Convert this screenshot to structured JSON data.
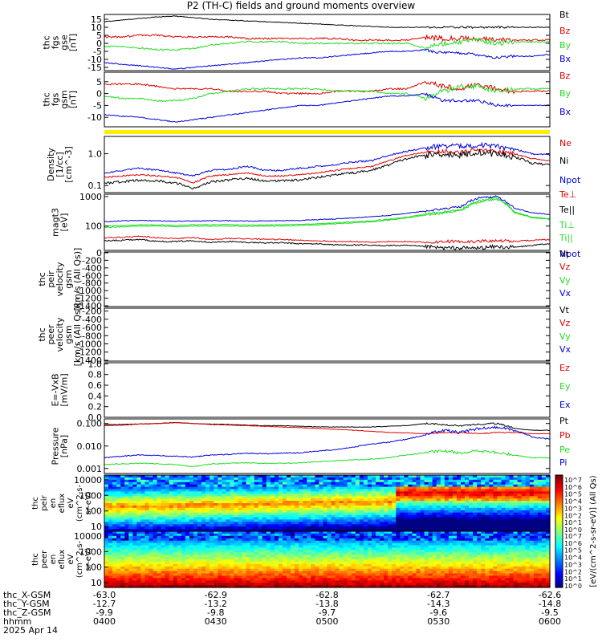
{
  "title": "P2 (TH-C) fields and ground moments overview",
  "colors": {
    "black": "#000000",
    "red": "#e00000",
    "green": "#22dd22",
    "blue": "#0000dd",
    "yellow": "#ffee00"
  },
  "chart_data": {
    "type": "line",
    "title": "P2 (TH-C) fields and ground moments overview",
    "panels": [
      {
        "id": "fgs_gse",
        "ylabel_lines": [
          "thc",
          "fgs",
          "gse",
          "[nT]"
        ],
        "scale": "linear",
        "ylim": [
          -17,
          18
        ],
        "yticks": [
          "15",
          "10",
          "5",
          "0",
          "-5",
          "-10",
          "-15"
        ],
        "ytick_values": [
          15,
          10,
          5,
          0,
          -5,
          -10,
          -15
        ],
        "series": [
          {
            "name": "Bt",
            "color": "#000000",
            "values": [
              13.5,
              14.5,
              15.5,
              16.5,
              17,
              16,
              15,
              14.5,
              14,
              13.5,
              13,
              12.5,
              12,
              11.5,
              11,
              10.5,
              10,
              10,
              10,
              10,
              10,
              10,
              10,
              10,
              10,
              10
            ],
            "noise": 0.2
          },
          {
            "name": "Bz",
            "color": "#e00000",
            "values": [
              4,
              4,
              5,
              5,
              4,
              4,
              4,
              4,
              3,
              3,
              3,
              3,
              3,
              3,
              2,
              2,
              2,
              2,
              4,
              3,
              3,
              3,
              2,
              2,
              2,
              2
            ],
            "noise": 0.5
          },
          {
            "name": "By",
            "color": "#22dd22",
            "values": [
              -2,
              -2,
              -3,
              -4,
              -4,
              -3,
              -1,
              0,
              1,
              1,
              1,
              0,
              0,
              0,
              0,
              0,
              0,
              0,
              -3,
              0,
              1,
              2,
              0,
              1,
              1,
              1
            ],
            "noise": 0.5
          },
          {
            "name": "Bx",
            "color": "#0000dd",
            "values": [
              -12,
              -13,
              -14,
              -15,
              -16,
              -15,
              -14,
              -13,
              -12,
              -11,
              -10,
              -9,
              -9,
              -8,
              -7,
              -6,
              -5,
              -5,
              -4,
              -6,
              -6,
              -7,
              -9,
              -8,
              -8,
              -7
            ],
            "noise": 0.3
          }
        ]
      },
      {
        "id": "fgs_gsm",
        "ylabel_lines": [
          "thc",
          "fgs",
          "gsm",
          "[nT]"
        ],
        "scale": "linear",
        "ylim": [
          -14,
          9
        ],
        "yticks": [
          "5",
          "0",
          "-5",
          "-10"
        ],
        "ytick_values": [
          5,
          0,
          -5,
          -10
        ],
        "series": [
          {
            "name": "Bz",
            "color": "#e00000",
            "values": [
              4,
              4,
              4,
              3,
              2,
              2,
              2,
              1,
              1,
              1,
              0,
              0,
              0,
              1,
              1,
              1,
              2,
              2,
              5,
              3,
              2,
              4,
              2,
              1,
              1,
              1
            ],
            "noise": 0.5
          },
          {
            "name": "By",
            "color": "#22dd22",
            "values": [
              -1,
              -2,
              -2,
              -3,
              -3,
              -2,
              0,
              1,
              2,
              2,
              2,
              2,
              2,
              1,
              1,
              1,
              0,
              0,
              -2,
              1,
              3,
              3,
              1,
              2,
              2,
              2
            ],
            "noise": 0.5
          },
          {
            "name": "Bx",
            "color": "#0000dd",
            "values": [
              -9,
              -9.5,
              -10,
              -11,
              -12,
              -11,
              -10,
              -9,
              -8,
              -7,
              -6,
              -5,
              -5,
              -4,
              -3,
              -2,
              -1,
              -1,
              0,
              -3,
              -3,
              -3,
              -5,
              -5,
              -5,
              -5
            ],
            "noise": 0.3
          }
        ]
      },
      {
        "id": "density",
        "ylabel_lines": [
          "Density",
          "[1/cc]",
          "[cm^-3]"
        ],
        "scale": "log",
        "ylim": [
          0.06,
          3.5
        ],
        "yticks": [
          "1.0",
          "0.1"
        ],
        "ytick_values": [
          1.0,
          0.1
        ],
        "series": [
          {
            "name": "Ne",
            "color": "#e00000",
            "values": [
              0.18,
              0.2,
              0.22,
              0.2,
              0.18,
              0.12,
              0.2,
              0.22,
              0.25,
              0.2,
              0.2,
              0.22,
              0.25,
              0.3,
              0.35,
              0.4,
              0.6,
              0.9,
              1.1,
              1.2,
              1.1,
              1.3,
              1.2,
              1.0,
              0.7,
              0.6
            ],
            "noise": 0.05
          },
          {
            "name": "Ni",
            "color": "#000000",
            "values": [
              0.12,
              0.13,
              0.15,
              0.14,
              0.12,
              0.08,
              0.13,
              0.15,
              0.17,
              0.14,
              0.14,
              0.15,
              0.18,
              0.22,
              0.25,
              0.3,
              0.45,
              0.7,
              0.9,
              1.0,
              0.9,
              1.1,
              1.0,
              0.8,
              0.5,
              0.45
            ],
            "noise": 0.08
          },
          {
            "name": "Npot",
            "color": "#0000dd",
            "values": [
              0.25,
              0.3,
              0.35,
              0.3,
              0.25,
              0.2,
              0.3,
              0.32,
              0.4,
              0.3,
              0.3,
              0.35,
              0.4,
              0.45,
              0.55,
              0.6,
              0.9,
              1.2,
              1.5,
              1.8,
              1.7,
              1.9,
              1.7,
              1.4,
              1.0,
              0.9
            ],
            "noise": 0.06
          }
        ]
      },
      {
        "id": "moms_temp",
        "ylabel_lines": [
          "magt3",
          "[eV]"
        ],
        "scale": "log",
        "ylim": [
          15,
          1200
        ],
        "yticks": [
          "1000",
          "100"
        ],
        "ytick_values": [
          1000,
          100
        ],
        "series": [
          {
            "name": "Te⊥",
            "color": "#e00000",
            "values": [
              40,
              42,
              45,
              40,
              38,
              40,
              35,
              38,
              37,
              36,
              35,
              33,
              32,
              30,
              30,
              28,
              30,
              30,
              28,
              30,
              30,
              30,
              32,
              30,
              33,
              35
            ],
            "noise": 0.04
          },
          {
            "name": "Te||",
            "color": "#000000",
            "values": [
              32,
              33,
              35,
              30,
              30,
              32,
              28,
              30,
              28,
              27,
              27,
              25,
              25,
              23,
              23,
              22,
              22,
              22,
              20,
              18,
              18,
              18,
              20,
              19,
              22,
              25
            ],
            "noise": 0.05
          },
          {
            "name": "Ti⊥",
            "color": "#22dd22",
            "values": [
              100,
              105,
              110,
              110,
              105,
              110,
              110,
              112,
              108,
              110,
              112,
              115,
              120,
              130,
              140,
              150,
              170,
              200,
              250,
              300,
              350,
              700,
              900,
              300,
              200,
              180
            ],
            "noise": 0.03
          },
          {
            "name": "Ti||",
            "color": "#22dd22",
            "values": [
              90,
              95,
              100,
              100,
              95,
              100,
              100,
              100,
              98,
              100,
              100,
              105,
              110,
              120,
              130,
              140,
              160,
              190,
              230,
              280,
              330,
              650,
              850,
              280,
              190,
              170
            ],
            "noise": 0.03
          },
          {
            "name": "Npot",
            "color": "#0000dd",
            "values": [
              140,
              150,
              155,
              150,
              145,
              150,
              150,
              152,
              148,
              150,
              152,
              155,
              165,
              175,
              190,
              210,
              230,
              270,
              320,
              380,
              450,
              900,
              1000,
              400,
              280,
              250
            ],
            "noise": 0.03
          }
        ]
      },
      {
        "id": "peir_velocity",
        "ylabel_lines": [
          "thc",
          "peir",
          "velocity",
          "gsm",
          "[km/s (All Qs)]"
        ],
        "scale": "linear",
        "ylim": [
          -1420,
          20
        ],
        "yticks": [
          "0",
          "-200",
          "-400",
          "-600",
          "-800",
          "-1000",
          "-1200",
          "-1400"
        ],
        "ytick_values": [
          0,
          -200,
          -400,
          -600,
          -800,
          -1000,
          -1200,
          -1400
        ],
        "series": []
      },
      {
        "id": "peer_velocity",
        "ylabel_lines": [
          "thc",
          "peer",
          "velocity",
          "gsm",
          "[km/s (All Qs)]"
        ],
        "scale": "linear",
        "ylim": [
          -1420,
          -130
        ],
        "yticks": [
          "-200",
          "-400",
          "-600",
          "-800",
          "-1000",
          "-1200",
          "-1400"
        ],
        "ytick_values": [
          -200,
          -400,
          -600,
          -800,
          -1000,
          -1200,
          -1400
        ],
        "series": []
      },
      {
        "id": "efield",
        "ylabel_lines": [
          "E=-VxB",
          "[mV/m]"
        ],
        "scale": "linear",
        "ylim": [
          0,
          1.02
        ],
        "yticks": [
          "1.0",
          "0.8",
          "0.6",
          "0.4",
          "0.2",
          "0.0"
        ],
        "ytick_values": [
          1.0,
          0.8,
          0.6,
          0.4,
          0.2,
          0.0
        ],
        "series": []
      },
      {
        "id": "pressure",
        "ylabel_lines": [
          "Pressure",
          "[nPa]"
        ],
        "scale": "log",
        "ylim": [
          0.0006,
          0.16
        ],
        "yticks": [
          "0.100",
          "0.010",
          "0.001"
        ],
        "ytick_values": [
          0.1,
          0.01,
          0.001
        ],
        "series": [
          {
            "name": "Pt",
            "color": "#000000",
            "values": [
              0.09,
              0.09,
              0.095,
              0.1,
              0.11,
              0.1,
              0.095,
              0.09,
              0.085,
              0.08,
              0.08,
              0.075,
              0.07,
              0.07,
              0.07,
              0.07,
              0.075,
              0.08,
              0.1,
              0.09,
              0.08,
              0.09,
              0.1,
              0.06,
              0.05,
              0.05
            ],
            "noise": 0.03
          },
          {
            "name": "Pb",
            "color": "#e00000",
            "values": [
              0.08,
              0.085,
              0.095,
              0.1,
              0.11,
              0.1,
              0.09,
              0.085,
              0.08,
              0.075,
              0.07,
              0.065,
              0.06,
              0.055,
              0.05,
              0.045,
              0.04,
              0.038,
              0.035,
              0.04,
              0.04,
              0.035,
              0.04,
              0.04,
              0.035,
              0.035
            ],
            "noise": 0.02
          },
          {
            "name": "Pe",
            "color": "#22dd22",
            "values": [
              0.0015,
              0.0016,
              0.0017,
              0.0016,
              0.0015,
              0.0012,
              0.0016,
              0.0017,
              0.0018,
              0.0017,
              0.0017,
              0.0018,
              0.002,
              0.0022,
              0.0024,
              0.0026,
              0.003,
              0.004,
              0.005,
              0.006,
              0.005,
              0.006,
              0.005,
              0.004,
              0.003,
              0.003
            ],
            "noise": 0.05
          },
          {
            "name": "Pi",
            "color": "#0000dd",
            "values": [
              0.003,
              0.0035,
              0.004,
              0.0038,
              0.0035,
              0.0032,
              0.004,
              0.0042,
              0.0048,
              0.0045,
              0.0048,
              0.005,
              0.006,
              0.007,
              0.009,
              0.012,
              0.015,
              0.02,
              0.03,
              0.05,
              0.04,
              0.06,
              0.07,
              0.05,
              0.025,
              0.02
            ],
            "noise": 0.05
          }
        ]
      }
    ],
    "spectrograms": [
      {
        "id": "peir_en_eflux",
        "ylabel_lines": [
          "thc",
          "peir",
          "en",
          "eflux",
          "eV",
          "(cm^2-s-",
          "sr-eV)"
        ],
        "yticks": [
          "10000",
          "1000",
          "100",
          "10"
        ],
        "ytick_values": [
          10000,
          1000,
          100,
          10
        ],
        "ylim": [
          5,
          20000
        ],
        "scale": "log"
      },
      {
        "id": "peer_en_eflux",
        "ylabel_lines": [
          "thc",
          "peer",
          "en",
          "eflux",
          "eV",
          "(cm^2-s-",
          "sr-eV)"
        ],
        "yticks": [
          "10000",
          "1000",
          "100",
          "10"
        ],
        "ytick_values": [
          10000,
          1000,
          100,
          10
        ],
        "ylim": [
          5,
          20000
        ],
        "scale": "log"
      }
    ],
    "colorbar": {
      "title": "[eV/(cm^2-s-sr-eV)] (All Qs)",
      "labels": [
        "10^7",
        "10^6",
        "10^5",
        "10^4",
        "10^3",
        "10^2",
        "10^1",
        "10^0"
      ],
      "label_values": [
        7,
        6,
        5,
        4,
        3,
        2,
        1,
        0
      ]
    },
    "x_axis": {
      "row_labels": [
        "thc_X-GSM",
        "thc_Y-GSM",
        "thc_Z-GSM",
        "hhmm",
        "2025 Apr 14"
      ],
      "ticks": [
        {
          "x": "-63.0",
          "y": "-12.7",
          "z": "-9.9",
          "hhmm": "0400"
        },
        {
          "x": "-62.9",
          "y": "-13.2",
          "z": "-9.8",
          "hhmm": "0430"
        },
        {
          "x": "-62.8",
          "y": "-13.8",
          "z": "-9.7",
          "hhmm": "0500"
        },
        {
          "x": "-62.7",
          "y": "-14.3",
          "z": "-9.6",
          "hhmm": "0530"
        },
        {
          "x": "-62.6",
          "y": "-14.8",
          "z": "-9.5",
          "hhmm": "0600"
        }
      ]
    }
  }
}
